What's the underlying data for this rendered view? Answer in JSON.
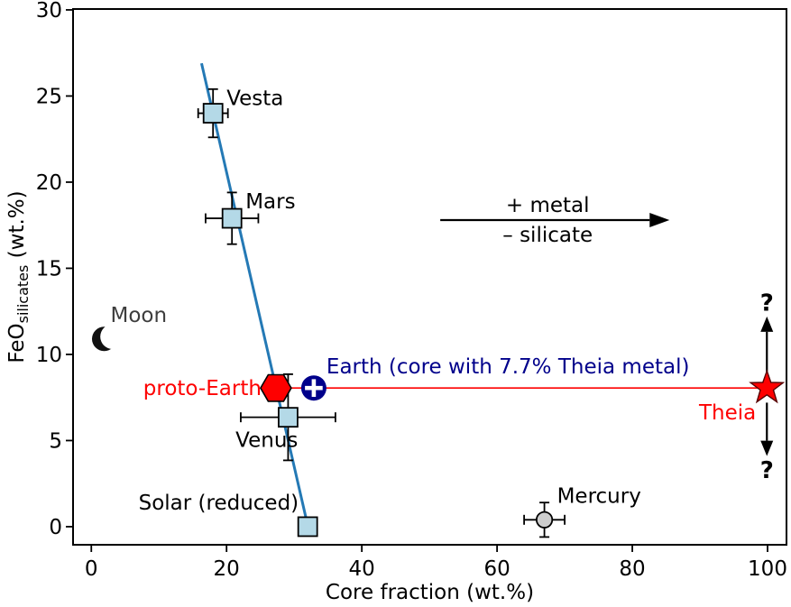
{
  "figure": {
    "background": "#ffffff"
  },
  "chart_data": {
    "type": "scatter",
    "title": "",
    "xlabel": "Core fraction (wt.%)",
    "ylabel": {
      "main": "FeO",
      "sub": "silicates",
      "unit": " (wt.%)"
    },
    "xticks": [
      0,
      20,
      40,
      60,
      80,
      100
    ],
    "yticks": [
      0,
      5,
      10,
      15,
      20,
      25,
      30
    ],
    "xlim": [
      -2.7,
      102.8
    ],
    "ylim": [
      -1.05,
      30.05
    ],
    "grid": false,
    "legend": "none",
    "points": [
      {
        "name": "vesta",
        "label": "Vesta",
        "x": 18.0,
        "y": 24.0,
        "xerr": 2.2,
        "yerr": 1.4,
        "marker": "square",
        "fill": "#b4d9e7",
        "edge": "#000000",
        "label_color": "#000000"
      },
      {
        "name": "mars",
        "label": "Mars",
        "x": 20.8,
        "y": 17.9,
        "xerr": 3.9,
        "yerr": 1.5,
        "marker": "square",
        "fill": "#b4d9e7",
        "edge": "#000000",
        "label_color": "#000000"
      },
      {
        "name": "venus",
        "label": "Venus",
        "x": 29.1,
        "y": 6.35,
        "xerr": 7.0,
        "yerr": 2.5,
        "marker": "square",
        "fill": "#b4d9e7",
        "edge": "#000000",
        "label_color": "#000000"
      },
      {
        "name": "solar",
        "label": "Solar (reduced)",
        "x": 32.0,
        "y": 0.0,
        "xerr": 0,
        "yerr": 0,
        "marker": "square",
        "fill": "#b4d9e7",
        "edge": "#000000",
        "label_color": "#000000"
      },
      {
        "name": "mercury",
        "label": "Mercury",
        "x": 67.0,
        "y": 0.4,
        "xerr": 3.0,
        "yerr": 1.0,
        "marker": "circle",
        "fill": "#cdcdcd",
        "edge": "#000000",
        "label_color": "#000000"
      },
      {
        "name": "moon",
        "label": "Moon",
        "x": 1.9,
        "y": 10.9,
        "xerr": 0,
        "yerr": 0,
        "marker": "crescent",
        "fill": "#111111",
        "edge": "#111111",
        "label_color": "#3d3d3d"
      },
      {
        "name": "proto-earth",
        "label": "proto-Earth",
        "x": 27.3,
        "y": 8.05,
        "xerr": 0,
        "yerr": 0,
        "marker": "hexagon",
        "fill": "#fe0000",
        "edge": "#000000",
        "label_color": "#fe0000"
      },
      {
        "name": "earth",
        "label": "Earth (core with 7.7% Theia metal)",
        "x": 32.9,
        "y": 8.05,
        "xerr": 0,
        "yerr": 0,
        "marker": "earth",
        "fill": "#00008b",
        "edge": "#00008b",
        "label_color": "#00008b"
      },
      {
        "name": "theia",
        "label": "Theia",
        "x": 99.9,
        "y": 8.05,
        "xerr": 0,
        "yerr": 0,
        "marker": "star",
        "fill": "#fe0000",
        "edge": "#550000",
        "label_color": "#fe0000"
      }
    ],
    "trend_line": {
      "x1": 16.3,
      "y1": 26.9,
      "x2": 32.1,
      "y2": -0.1,
      "color": "#2479b5"
    },
    "mixing_line": {
      "x1": 27.3,
      "x2": 99.9,
      "y": 8.05,
      "color": "#fe0000"
    },
    "metal_arrow": {
      "x1": 51.6,
      "x2": 85.5,
      "y": 17.8,
      "label_top": "+ metal",
      "label_bottom": "– silicate",
      "color": "#000000"
    },
    "theia_uncertainty": {
      "x": 99.9,
      "up_arrow": {
        "y1": 9.0,
        "y2": 12.2
      },
      "down_arrow": {
        "y1": 7.2,
        "y2": 4.1
      },
      "q_top": {
        "text": "?",
        "y": 13.0
      },
      "q_bottom": {
        "text": "?",
        "y": 3.3
      }
    }
  }
}
